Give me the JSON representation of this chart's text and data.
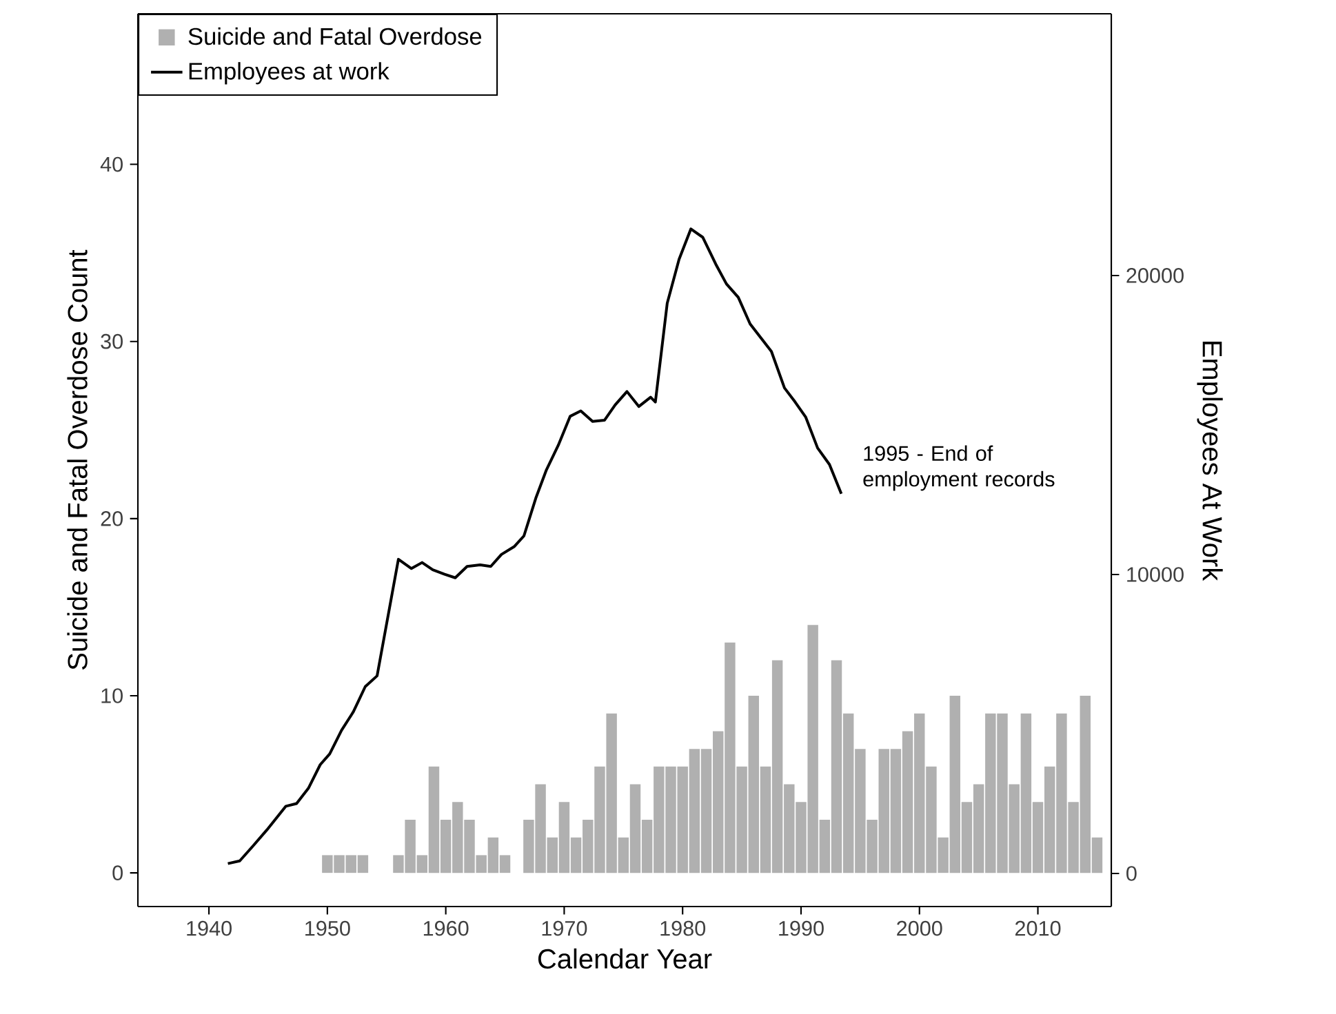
{
  "chart_data": {
    "type": "bar",
    "xlabel": "Calendar Year",
    "ylabel": "Suicide and Fatal Overdose Count",
    "y2label": "Employees At Work",
    "xlim": [
      1934,
      2016.2
    ],
    "xticks": [
      1940,
      1950,
      1960,
      1970,
      1980,
      1990,
      2000,
      2010
    ],
    "ylim": [
      -1.9,
      48.5
    ],
    "yticks": [
      0,
      10,
      20,
      30,
      40
    ],
    "y2lim": [
      -1106,
      28755
    ],
    "y2ticks": [
      0,
      10000,
      20000
    ],
    "legend": "top left",
    "annotations": [
      "1995 - End of employment records"
    ],
    "series": [
      {
        "name": "Suicide and Fatal Overdose",
        "color": "#b0b0b0",
        "x": [
          1950,
          1951,
          1952,
          1953,
          1954,
          1955,
          1956,
          1957,
          1958,
          1959,
          1960,
          1961,
          1962,
          1963,
          1964,
          1965,
          1966,
          1967,
          1968,
          1969,
          1970,
          1971,
          1972,
          1973,
          1974,
          1975,
          1976,
          1977,
          1978,
          1979,
          1980,
          1981,
          1982,
          1983,
          1984,
          1985,
          1986,
          1987,
          1988,
          1989,
          1990,
          1991,
          1992,
          1993,
          1994,
          1995,
          1996,
          1997,
          1998,
          1999,
          2000,
          2001,
          2002,
          2003,
          2004,
          2005,
          2006,
          2007,
          2008,
          2009,
          2010,
          2011,
          2012,
          2013,
          2014,
          2015
        ],
        "values": [
          1,
          1,
          1,
          1,
          0,
          0,
          1,
          3,
          1,
          6,
          3,
          4,
          3,
          1,
          2,
          1,
          0,
          3,
          5,
          2,
          4,
          2,
          3,
          6,
          9,
          2,
          5,
          3,
          6,
          6,
          6,
          7,
          7,
          8,
          13,
          6,
          10,
          6,
          12,
          5,
          4,
          14,
          3,
          12,
          9,
          7,
          3,
          7,
          7,
          8,
          9,
          6,
          2,
          10,
          4,
          5,
          9,
          9,
          5,
          9,
          4,
          6,
          9,
          4,
          10,
          2
        ]
      },
      {
        "name": "Employees at work",
        "type": "line",
        "axis": "y2",
        "color": "#000000",
        "x": [
          1941.6,
          1942.6,
          1943.7,
          1944.9,
          1946.5,
          1947.4,
          1948.4,
          1949.4,
          1950.2,
          1951.2,
          1952.2,
          1953.2,
          1954.2,
          1956.0,
          1957.1,
          1958.0,
          1958.9,
          1959.9,
          1960.8,
          1961.8,
          1962.9,
          1963.8,
          1964.7,
          1965.8,
          1966.6,
          1967.6,
          1968.5,
          1969.5,
          1970.5,
          1971.4,
          1972.4,
          1973.4,
          1974.3,
          1975.3,
          1976.3,
          1977.3,
          1977.7,
          1978.7,
          1979.7,
          1980.7,
          1981.7,
          1982.8,
          1983.7,
          1984.7,
          1985.7,
          1986.6,
          1987.5,
          1988.6,
          1989.5,
          1990.4,
          1991.4,
          1992.4,
          1993.4
        ],
        "values": [
          330,
          420,
          910,
          1460,
          2250,
          2340,
          2850,
          3640,
          4000,
          4790,
          5410,
          6250,
          6610,
          10510,
          10200,
          10400,
          10160,
          10010,
          9890,
          10270,
          10320,
          10270,
          10670,
          10940,
          11290,
          12550,
          13500,
          14320,
          15290,
          15470,
          15120,
          15160,
          15670,
          16120,
          15620,
          15930,
          15770,
          19070,
          20540,
          21560,
          21280,
          20380,
          19720,
          19270,
          18380,
          17920,
          17460,
          16240,
          15770,
          15260,
          14230,
          13680,
          12700
        ]
      }
    ]
  }
}
